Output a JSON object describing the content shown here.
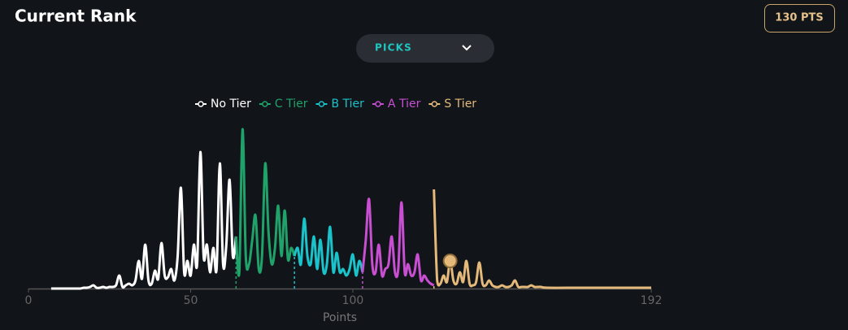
{
  "header": {
    "title": "Current Rank",
    "badge": "130 PTS",
    "dropdown": "PICKS"
  },
  "chart_data": {
    "type": "line",
    "xlabel": "Points",
    "xlim": [
      0,
      192
    ],
    "xticks": [
      0,
      50,
      100,
      192
    ],
    "ylim": [
      0,
      100
    ],
    "thresholds": [
      64,
      82,
      103,
      125
    ],
    "current": {
      "x": 130,
      "value": 17
    },
    "series": [
      {
        "name": "No Tier",
        "color": "#ffffff",
        "x": [
          7,
          8,
          9,
          10,
          11,
          12,
          13,
          14,
          15,
          16,
          17,
          18,
          19,
          20,
          21,
          22,
          23,
          24,
          25,
          26,
          27,
          28,
          29,
          30,
          31,
          32,
          33,
          34,
          35,
          36,
          37,
          38,
          39,
          40,
          41,
          42,
          43,
          44,
          45,
          46,
          47,
          48,
          49,
          50,
          51,
          52,
          53,
          54,
          55,
          56,
          57,
          58,
          59,
          60,
          61,
          62,
          63,
          64
        ],
        "values": [
          0,
          0,
          0,
          0,
          0,
          0,
          0,
          0,
          0,
          0,
          0.5,
          0.5,
          1,
          2,
          0.5,
          0.5,
          1,
          0.5,
          1,
          1,
          2,
          8,
          1,
          2,
          3,
          2,
          5,
          17,
          6,
          27,
          5,
          3,
          11,
          6,
          28,
          8,
          7,
          12,
          5,
          20,
          62,
          10,
          17,
          8,
          27,
          15,
          84,
          20,
          27,
          10,
          25,
          12,
          77,
          15,
          27,
          67,
          20,
          32
        ]
      },
      {
        "name": "C Tier",
        "color": "#1fa36a",
        "x": [
          64,
          65,
          66,
          67,
          68,
          69,
          70,
          71,
          72,
          73,
          74,
          75,
          76,
          77,
          78,
          79,
          80,
          81,
          82
        ],
        "values": [
          32,
          10,
          98,
          20,
          15,
          30,
          45,
          12,
          20,
          77,
          35,
          15,
          25,
          51,
          20,
          48,
          18,
          25,
          20
        ]
      },
      {
        "name": "B Tier",
        "color": "#19c3c9",
        "x": [
          82,
          83,
          84,
          85,
          86,
          87,
          88,
          89,
          90,
          91,
          92,
          93,
          94,
          95,
          96,
          97,
          98,
          99,
          100,
          101,
          102,
          103
        ],
        "values": [
          20,
          25,
          15,
          43,
          20,
          15,
          32,
          12,
          30,
          10,
          15,
          38,
          10,
          22,
          10,
          12,
          8,
          12,
          21,
          8,
          17,
          10
        ]
      },
      {
        "name": "A Tier",
        "color": "#c84fd1",
        "x": [
          103,
          104,
          105,
          106,
          107,
          108,
          109,
          110,
          111,
          112,
          113,
          114,
          115,
          116,
          117,
          118,
          119,
          120,
          121,
          122,
          123,
          124,
          125
        ],
        "values": [
          10,
          30,
          55,
          15,
          10,
          27,
          8,
          12,
          15,
          32,
          10,
          12,
          53,
          10,
          15,
          8,
          10,
          21,
          5,
          8,
          5,
          3,
          2
        ]
      },
      {
        "name": "S Tier",
        "color": "#e4b97a",
        "x": [
          125,
          126,
          127,
          128,
          129,
          130,
          131,
          132,
          133,
          134,
          135,
          136,
          137,
          138,
          139,
          140,
          141,
          142,
          143,
          144,
          145,
          146,
          147,
          148,
          149,
          150,
          151,
          152,
          153,
          154,
          155,
          156,
          157,
          158,
          160,
          170,
          180,
          192
        ],
        "values": [
          61,
          5,
          3,
          8,
          4,
          17,
          5,
          3,
          10,
          4,
          17,
          3,
          2,
          4,
          16,
          3,
          2,
          5,
          2,
          1,
          1,
          2,
          1,
          1,
          2,
          5,
          1,
          1,
          1,
          1,
          2,
          1,
          1,
          1,
          0.5,
          0.5,
          0.5,
          0.5
        ]
      }
    ]
  }
}
